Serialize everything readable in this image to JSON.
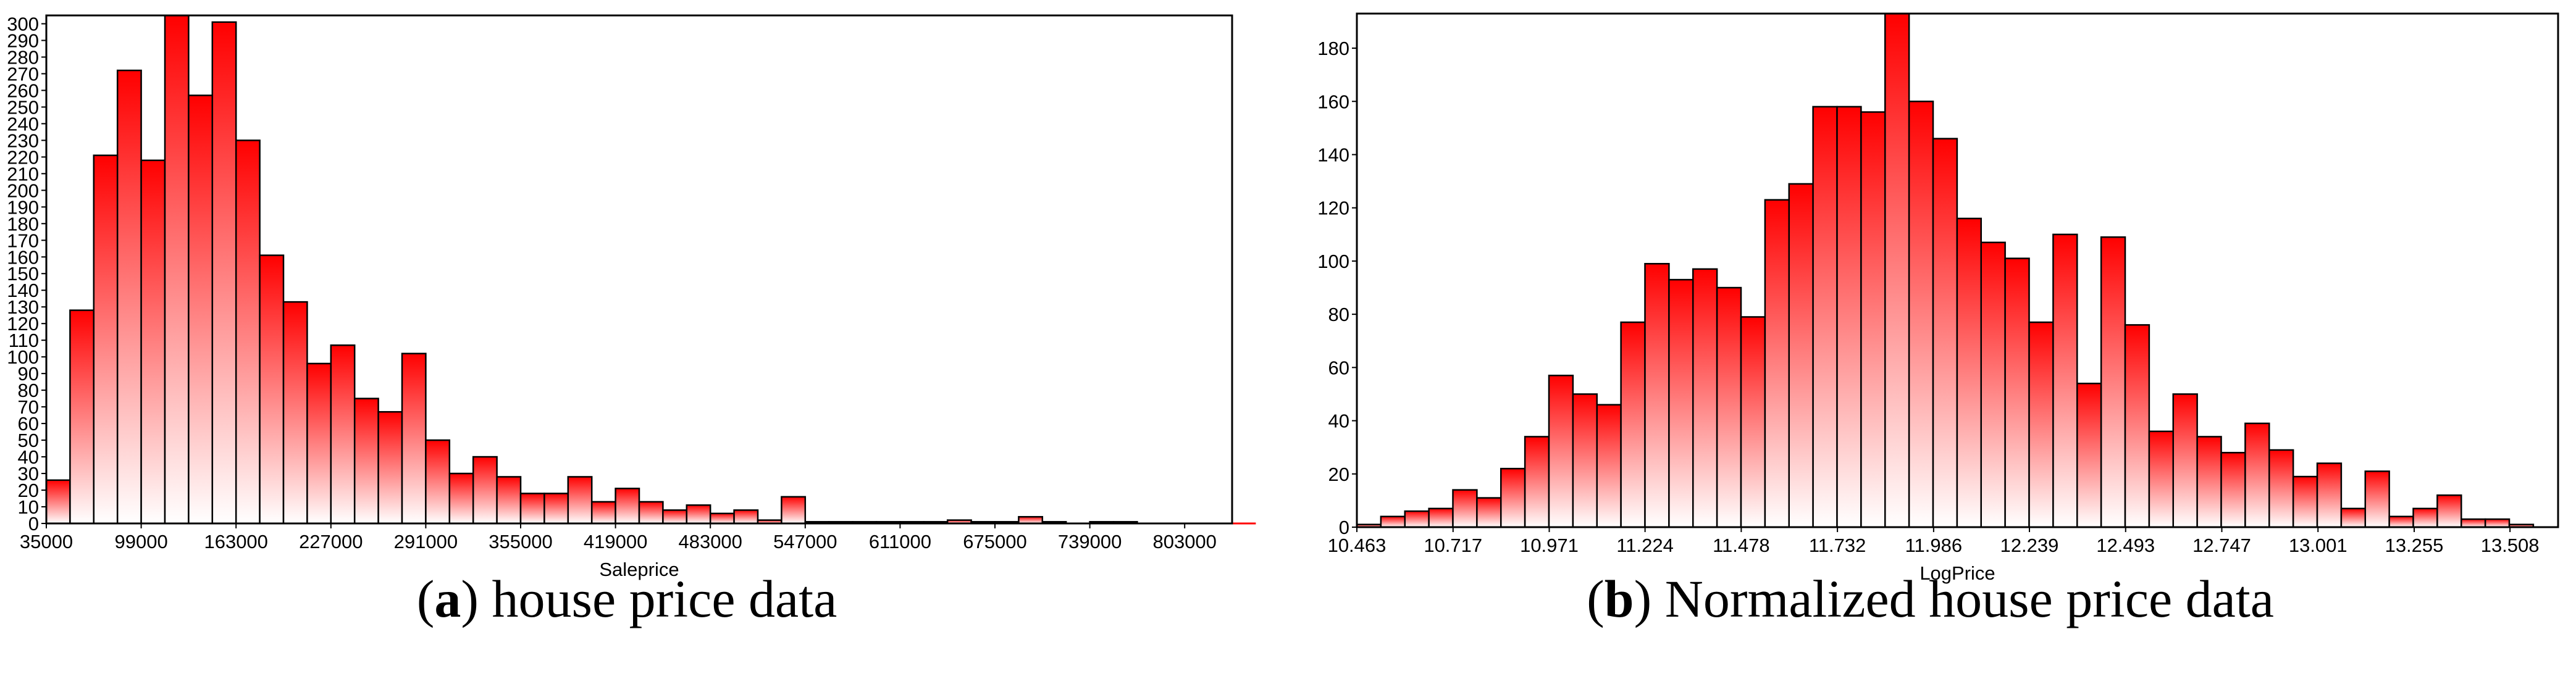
{
  "chart_data": [
    {
      "type": "bar",
      "xlabel": "Saleprice",
      "ylabel": "",
      "xlim": [
        35000,
        835000
      ],
      "ylim": [
        0,
        305
      ],
      "yticks": [
        0,
        10,
        20,
        30,
        40,
        50,
        60,
        70,
        80,
        90,
        100,
        110,
        120,
        130,
        140,
        150,
        160,
        170,
        180,
        190,
        200,
        210,
        220,
        230,
        240,
        250,
        260,
        270,
        280,
        290,
        300
      ],
      "xticks": [
        "35000",
        "99000",
        "163000",
        "227000",
        "291000",
        "355000",
        "419000",
        "483000",
        "547000",
        "611000",
        "675000",
        "739000",
        "803000"
      ],
      "bin_start": 35000,
      "bin_width": 16000,
      "values": [
        26,
        128,
        221,
        272,
        218,
        305,
        257,
        301,
        230,
        161,
        133,
        96,
        107,
        75,
        67,
        102,
        50,
        30,
        40,
        28,
        18,
        18,
        28,
        13,
        21,
        13,
        8,
        11,
        6,
        8,
        2,
        16,
        1,
        1,
        1,
        1,
        1,
        1,
        2,
        1,
        1,
        4,
        1,
        0,
        1,
        1,
        0,
        0,
        0,
        0,
        0
      ],
      "caption_letter": "a",
      "caption_text": "house price data"
    },
    {
      "type": "bar",
      "xlabel": "LogPrice",
      "ylabel": "",
      "xlim": [
        10.463,
        13.635
      ],
      "ylim": [
        0,
        193
      ],
      "yticks": [
        0,
        20,
        40,
        60,
        80,
        100,
        120,
        140,
        160,
        180
      ],
      "xticks": [
        "10.463",
        "10.717",
        "10.971",
        "11.224",
        "11.478",
        "11.732",
        "11.986",
        "12.239",
        "12.493",
        "12.747",
        "13.001",
        "13.255",
        "13.508"
      ],
      "bin_start": 10.463,
      "bin_width": 0.0634,
      "values": [
        1,
        4,
        6,
        7,
        14,
        11,
        22,
        34,
        57,
        50,
        46,
        77,
        99,
        93,
        97,
        90,
        79,
        123,
        129,
        158,
        158,
        156,
        193,
        160,
        146,
        116,
        107,
        101,
        77,
        110,
        54,
        109,
        76,
        36,
        50,
        34,
        28,
        39,
        29,
        19,
        24,
        7,
        21,
        4,
        7,
        12,
        3,
        3,
        1
      ],
      "caption_letter": "b",
      "caption_text": "Normalized house price data"
    }
  ],
  "colors": {
    "bar_top": "#ff0000",
    "bar_bottom": "#ffffff",
    "bar_edge": "#000000"
  }
}
